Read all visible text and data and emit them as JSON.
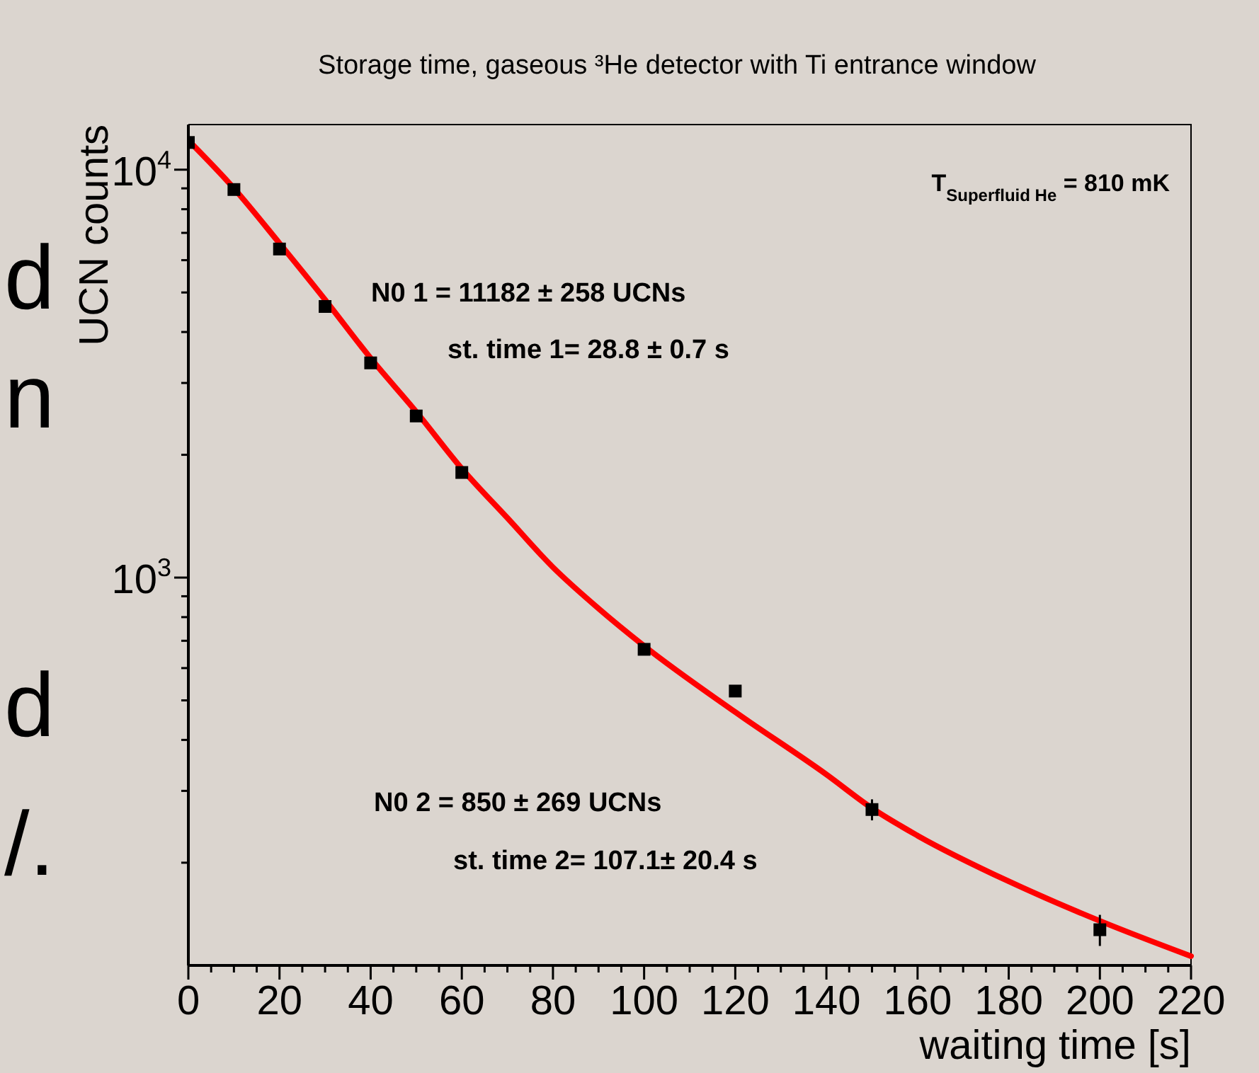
{
  "chart_data": {
    "type": "scatter",
    "title": "Storage time, gaseous  ³He detector with Ti entrance window",
    "xlabel": "waiting time [s]",
    "ylabel": "UCN counts",
    "log": "y",
    "marker": "square",
    "xlim": [
      0,
      220
    ],
    "ylim": [
      112,
      12900
    ],
    "xticks": [
      0,
      {
        "value": 5,
        "label": null
      },
      {
        "value": 10,
        "label": null
      },
      {
        "value": 15,
        "label": null
      },
      20,
      {
        "value": 25,
        "label": null
      },
      {
        "value": 30,
        "label": null
      },
      {
        "value": 35,
        "label": null
      },
      40,
      {
        "value": 45,
        "label": null
      },
      {
        "value": 50,
        "label": null
      },
      {
        "value": 55,
        "label": null
      },
      60,
      {
        "value": 65,
        "label": null
      },
      {
        "value": 70,
        "label": null
      },
      {
        "value": 75,
        "label": null
      },
      80,
      {
        "value": 85,
        "label": null
      },
      {
        "value": 90,
        "label": null
      },
      {
        "value": 95,
        "label": null
      },
      100,
      {
        "value": 105,
        "label": null
      },
      {
        "value": 110,
        "label": null
      },
      {
        "value": 115,
        "label": null
      },
      120,
      {
        "value": 125,
        "label": null
      },
      {
        "value": 130,
        "label": null
      },
      {
        "value": 135,
        "label": null
      },
      140,
      {
        "value": 145,
        "label": null
      },
      {
        "value": 150,
        "label": null
      },
      {
        "value": 155,
        "label": null
      },
      160,
      {
        "value": 165,
        "label": null
      },
      {
        "value": 170,
        "label": null
      },
      {
        "value": 175,
        "label": null
      },
      180,
      {
        "value": 185,
        "label": null
      },
      {
        "value": 190,
        "label": null
      },
      {
        "value": 195,
        "label": null
      },
      200,
      {
        "value": 205,
        "label": null
      },
      {
        "value": 210,
        "label": null
      },
      {
        "value": 215,
        "label": null
      },
      220
    ],
    "yticks": [
      {
        "value": 200,
        "label": null
      },
      {
        "value": 300,
        "label": null
      },
      {
        "value": 400,
        "label": null
      },
      {
        "value": 500,
        "label": null
      },
      {
        "value": 600,
        "label": null
      },
      {
        "value": 700,
        "label": null
      },
      {
        "value": 800,
        "label": null
      },
      {
        "value": 900,
        "label": null
      },
      {
        "value": 1000,
        "label": "10$^{3}$"
      },
      {
        "value": 2000,
        "label": null
      },
      {
        "value": 3000,
        "label": null
      },
      {
        "value": 4000,
        "label": null
      },
      {
        "value": 5000,
        "label": null
      },
      {
        "value": 6000,
        "label": null
      },
      {
        "value": 7000,
        "label": null
      },
      {
        "value": 8000,
        "label": null
      },
      {
        "value": 9000,
        "label": null
      },
      {
        "value": 10000,
        "label": "10$^{4}$"
      }
    ],
    "series": [
      {
        "color": "#000000",
        "x": [
          0,
          10,
          20,
          30,
          40,
          50,
          60,
          100,
          120,
          150,
          200
        ],
        "values": [
          11660,
          8940,
          6390,
          4620,
          3360,
          2490,
          1810,
          667,
          527,
          270,
          137
        ],
        "errors": [
          null,
          null,
          null,
          null,
          null,
          null,
          null,
          null,
          null,
          16,
          12
        ]
      },
      {
        "type": "line",
        "color": "#ff0000",
        "marker": "none",
        "line_style": "solid",
        "x": [
          0,
          10,
          20,
          30,
          40,
          50,
          60,
          70,
          80,
          90,
          100,
          120,
          140,
          150,
          160,
          180,
          200,
          220
        ],
        "values": [
          11800,
          9000,
          6600,
          4800,
          3450,
          2550,
          1850,
          1400,
          1060,
          840,
          680,
          468,
          329,
          272,
          233,
          180,
          144,
          118
        ]
      }
    ],
    "annotations": [
      "T$_{Superfluid He}$ = 810 mK",
      "N0 1 = 11182 ± 258 UCNs",
      "st. time 1= 28.8 ± 0.7 s",
      "N0 2 = 850 ± 269 UCNs",
      "st. time 2= 107.1± 20.4 s",
      "d",
      "n",
      "d",
      "/."
    ]
  }
}
